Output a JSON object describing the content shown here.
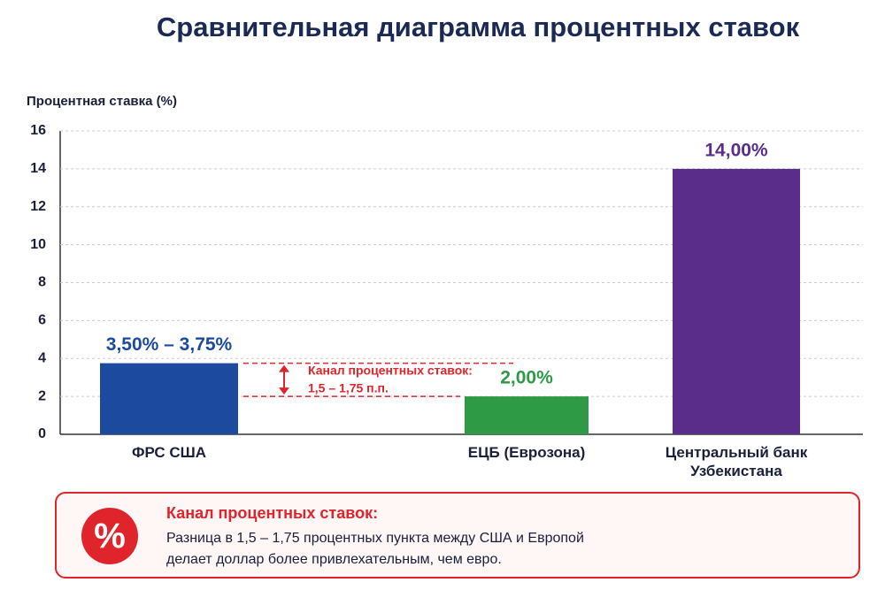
{
  "chart_data": {
    "type": "bar",
    "title": "Сравнительная диаграмма процентных ставок",
    "y_label": "Процентная ставка (%)",
    "categories": [
      "ФРС США",
      "ЕЦБ (Еврозона)",
      "Центральный банк Узбекистана"
    ],
    "values": [
      3.75,
      2,
      14
    ],
    "value_labels": [
      "3,50% – 3,75%",
      "2,00%",
      "14,00%"
    ],
    "colors": [
      "#1c4a9e",
      "#2f9a45",
      "#5a2d8a"
    ],
    "ylim": [
      0,
      16
    ],
    "yticks": [
      0,
      2,
      4,
      6,
      8,
      10,
      12,
      14,
      16
    ],
    "grid": true,
    "annotation": {
      "lines": [
        "Канал процентных ставок:",
        "1,5 – 1,75 п.п."
      ],
      "color": "#e0242b"
    }
  },
  "info_box": {
    "icon": "%",
    "heading": "Канал процентных ставок:",
    "lines": [
      "Разница в 1,5 – 1,75 процентных пункта между США и Европой",
      "делает доллар более привлехательным, чем евро."
    ]
  }
}
